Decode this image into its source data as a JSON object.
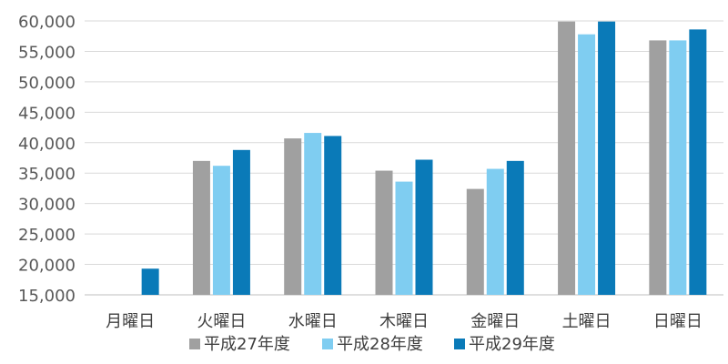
{
  "chart_data": {
    "type": "bar",
    "categories": [
      "月曜日",
      "火曜日",
      "水曜日",
      "木曜日",
      "金曜日",
      "土曜日",
      "日曜日"
    ],
    "series": [
      {
        "name": "平成27年度",
        "color": "#a0a0a0",
        "values": [
          null,
          37000,
          40700,
          35400,
          32400,
          59900,
          56800
        ]
      },
      {
        "name": "平成28年度",
        "color": "#7fcdf1",
        "values": [
          null,
          36200,
          41600,
          33600,
          35700,
          57800,
          56800
        ]
      },
      {
        "name": "平成29年度",
        "color": "#0a7ab8",
        "values": [
          19300,
          38800,
          41100,
          37200,
          37000,
          59900,
          58600
        ]
      }
    ],
    "ylim": [
      15000,
      60000
    ],
    "yticks": [
      15000,
      20000,
      25000,
      30000,
      35000,
      40000,
      45000,
      50000,
      55000,
      60000
    ],
    "ytick_labels": [
      "15,000",
      "20,000",
      "25,000",
      "30,000",
      "35,000",
      "40,000",
      "45,000",
      "50,000",
      "55,000",
      "60,000"
    ],
    "grid": true,
    "legend_position": "bottom",
    "title": "",
    "xlabel": "",
    "ylabel": ""
  }
}
